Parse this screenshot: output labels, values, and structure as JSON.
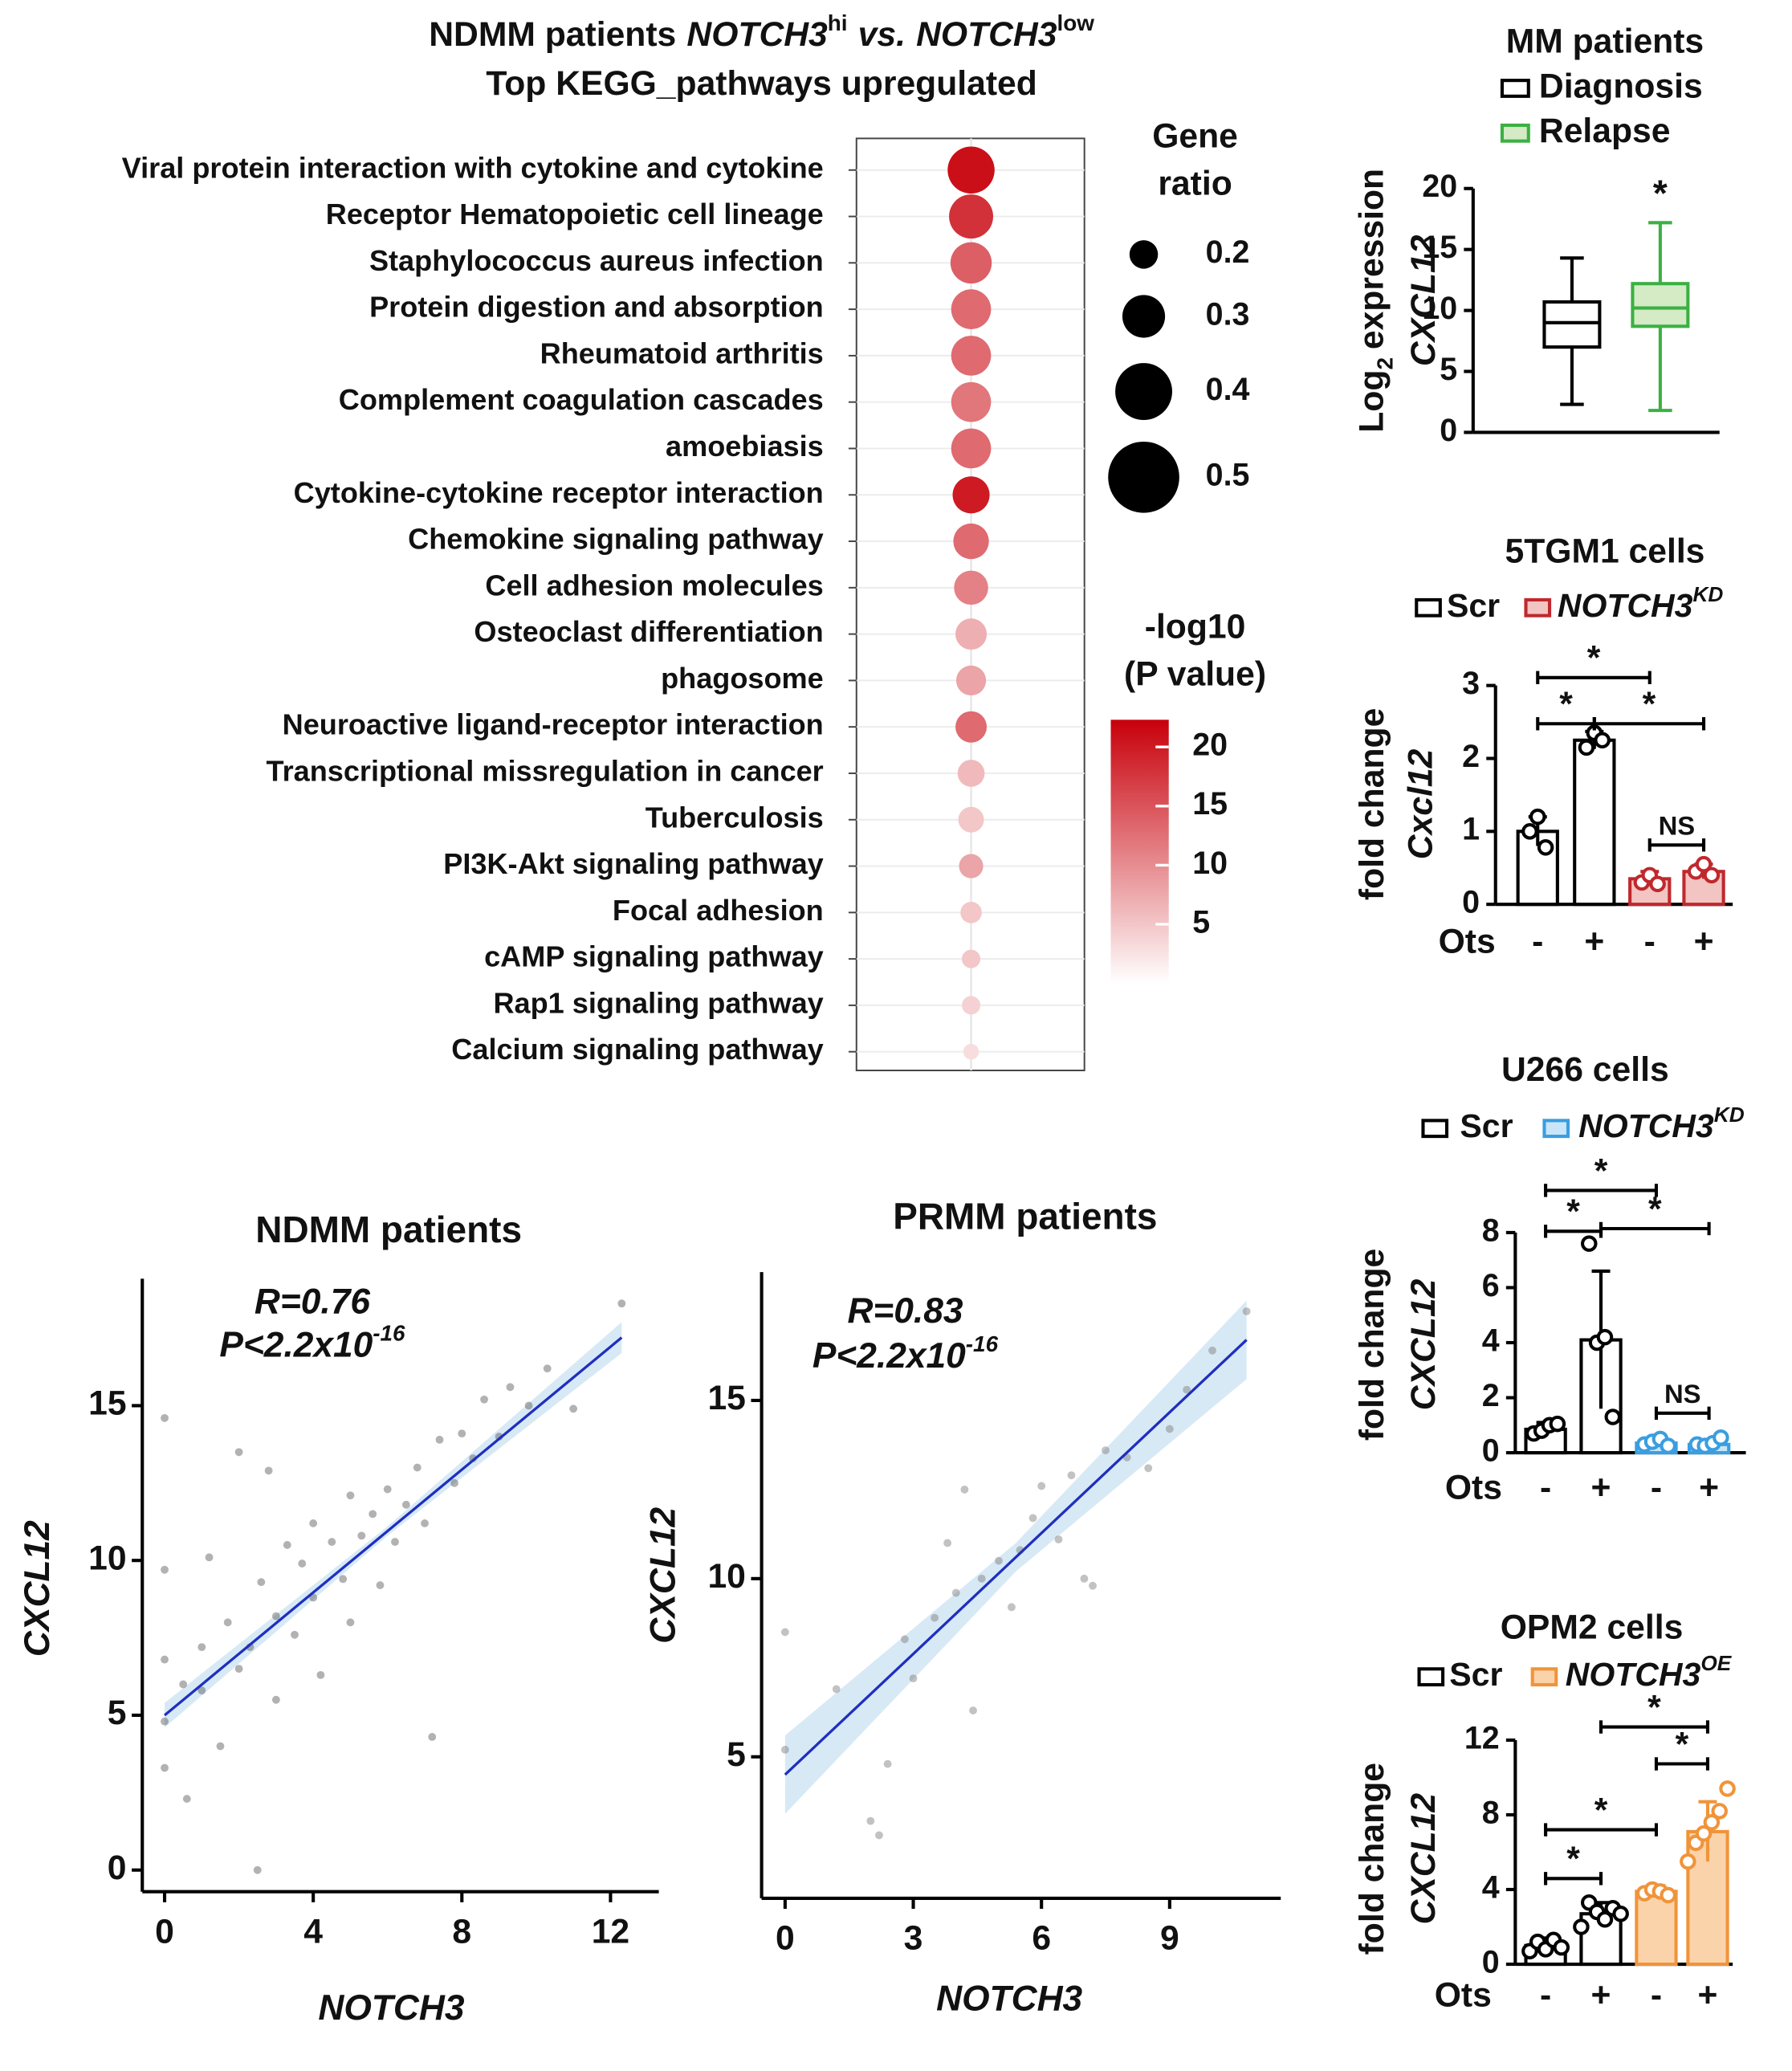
{
  "chart_data": [
    {
      "type": "dot",
      "title_parts": [
        "NDMM patients",
        "NOTCH3",
        "hi",
        "vs.",
        "NOTCH3",
        "low"
      ],
      "subtitle": "Top KEGG_pathways upregulated",
      "categories": [
        "Viral protein interaction with cytokine and cytokine",
        "Receptor Hematopoietic cell lineage",
        "Staphylococcus aureus infection",
        "Protein digestion and absorption",
        "Rheumatoid arthritis",
        "Complement coagulation cascades",
        "amoebiasis",
        "Cytokine-cytokine receptor interaction",
        "Chemokine signaling pathway",
        "Cell adhesion molecules",
        "Osteoclast differentiation",
        "phagosome",
        "Neuroactive ligand-receptor interaction",
        "Transcriptional missregulation in cancer",
        "Tuberculosis",
        "PI3K-Akt signaling pathway",
        "Focal adhesion",
        "cAMP signaling pathway",
        "Rap1 signaling pathway",
        "Calcium signaling pathway"
      ],
      "label_colors": [
        "#111111",
        "#111111",
        "#111111",
        "#111111",
        "#111111",
        "#111111",
        "#111111",
        "#2424d0",
        "#2424d0",
        "#2424d0",
        "#111111",
        "#111111",
        "#111111",
        "#111111",
        "#111111",
        "#111111",
        "#111111",
        "#111111",
        "#111111",
        "#111111"
      ],
      "gene_ratio": [
        0.33,
        0.31,
        0.29,
        0.28,
        0.28,
        0.28,
        0.28,
        0.26,
        0.25,
        0.24,
        0.22,
        0.21,
        0.22,
        0.19,
        0.18,
        0.17,
        0.15,
        0.13,
        0.13,
        0.11
      ],
      "neg_log10_p": [
        21,
        18,
        14,
        13,
        13,
        12,
        13,
        20,
        13,
        11,
        7,
        8,
        13,
        6,
        5,
        8,
        5,
        5,
        4,
        3
      ],
      "size_legend_title": [
        "Gene",
        "ratio"
      ],
      "size_legend": [
        0.2,
        0.3,
        0.4,
        0.5
      ],
      "color_legend_title": [
        "-log10",
        "(P value)"
      ],
      "clim": [
        0,
        22.3
      ],
      "cticks": [
        5,
        10,
        15,
        20
      ],
      "cmap": [
        "#ffffff",
        "#c8000a"
      ]
    },
    {
      "type": "box",
      "title": "MM patients",
      "series": [
        {
          "name": "Diagnosis",
          "color": "#000000",
          "fill": "#ffffff",
          "min": 2.3,
          "q1": 7.0,
          "median": 9.0,
          "q3": 10.7,
          "max": 14.3
        },
        {
          "name": "Relapse",
          "color": "#3cb043",
          "fill": "#d4ebc6",
          "min": 1.8,
          "q1": 8.7,
          "median": 10.2,
          "q3": 12.2,
          "max": 17.2,
          "mark": "*"
        }
      ],
      "ylim": [
        0,
        20
      ],
      "yticks": [
        0,
        5,
        10,
        15,
        20
      ],
      "ylabel_parts": [
        "Log",
        "2",
        "expression"
      ],
      "ylabel2": "CXCL12"
    },
    {
      "type": "bar",
      "title": "5TGM1 cells",
      "xlabel": "Ots",
      "categories": [
        "-",
        "+",
        "-",
        "+"
      ],
      "series": [
        {
          "name": "Scr",
          "color": "#000000",
          "fill": "#ffffff",
          "values": [
            1.0,
            2.25,
            null,
            null
          ],
          "errors": [
            0.2,
            0.12,
            null,
            null
          ],
          "points": [
            [
              1.0,
              1.2,
              0.78
            ],
            [
              2.15,
              2.35,
              2.25
            ],
            null,
            null
          ]
        },
        {
          "name": "NOTCH3",
          "name_sup": "KD",
          "color": "#c0282d",
          "fill": "#f2c4c2",
          "values": [
            null,
            null,
            0.35,
            0.45
          ],
          "errors": [
            null,
            null,
            0.1,
            0.1
          ],
          "points": [
            null,
            null,
            [
              0.3,
              0.4,
              0.28
            ],
            [
              0.45,
              0.55,
              0.4
            ]
          ]
        }
      ],
      "ylim": [
        0,
        3
      ],
      "yticks": [
        0,
        1,
        2,
        3
      ],
      "ylabel": [
        "fold change",
        "Cxcl12"
      ],
      "comparisons": [
        {
          "pair": [
            0,
            1
          ],
          "label": "*"
        },
        {
          "pair": [
            1,
            3
          ],
          "label": "*"
        },
        {
          "pair": [
            0,
            2
          ],
          "label": "*"
        },
        {
          "pair": [
            2,
            3
          ],
          "label": "NS"
        }
      ]
    },
    {
      "type": "bar",
      "title": "U266 cells",
      "xlabel": "Ots",
      "categories": [
        "-",
        "+",
        "-",
        "+"
      ],
      "series": [
        {
          "name": "Scr",
          "color": "#000000",
          "fill": "#ffffff",
          "values": [
            0.85,
            4.1,
            null,
            null
          ],
          "errors": [
            0.25,
            2.5,
            null,
            null
          ],
          "points": [
            [
              0.7,
              0.8,
              1.0,
              1.05
            ],
            [
              7.6,
              4.0,
              4.2,
              1.3
            ],
            null,
            null
          ]
        },
        {
          "name": "NOTCH3",
          "name_sup": "KD",
          "color": "#3a9ee0",
          "fill": "#c8e6f8",
          "values": [
            null,
            null,
            0.35,
            0.3
          ],
          "errors": [
            null,
            null,
            0.1,
            0.1
          ],
          "points": [
            null,
            null,
            [
              0.3,
              0.4,
              0.5,
              0.25
            ],
            [
              0.3,
              0.25,
              0.35,
              0.55
            ]
          ]
        }
      ],
      "ylim": [
        0,
        8
      ],
      "yticks": [
        0,
        2,
        4,
        6,
        8
      ],
      "ylabel": [
        "fold change",
        "CXCL12"
      ],
      "comparisons": [
        {
          "pair": [
            0,
            1
          ],
          "label": "*"
        },
        {
          "pair": [
            1,
            3
          ],
          "label": "*"
        },
        {
          "pair": [
            0,
            2
          ],
          "label": "*"
        },
        {
          "pair": [
            2,
            3
          ],
          "label": "NS"
        }
      ]
    },
    {
      "type": "bar",
      "title": "OPM2 cells",
      "xlabel": "Ots",
      "categories": [
        "-",
        "+",
        "-",
        "+"
      ],
      "series": [
        {
          "name": "Scr",
          "color": "#000000",
          "fill": "#ffffff",
          "values": [
            1.0,
            2.7,
            null,
            null
          ],
          "errors": [
            0.4,
            0.6,
            null,
            null
          ],
          "points": [
            [
              0.7,
              1.2,
              0.8,
              1.3,
              0.9
            ],
            [
              2.0,
              3.3,
              2.8,
              2.4,
              3.0,
              2.7
            ],
            null,
            null
          ]
        },
        {
          "name": "NOTCH3",
          "name_sup": "OE",
          "color": "#f0943a",
          "fill": "#fbd3aa",
          "values": [
            null,
            null,
            3.9,
            7.1
          ],
          "errors": [
            null,
            null,
            0.3,
            1.6
          ],
          "points": [
            null,
            null,
            [
              3.8,
              4.0,
              3.9,
              3.7
            ],
            [
              5.5,
              6.5,
              7.0,
              7.6,
              8.2,
              9.4
            ]
          ]
        }
      ],
      "ylim": [
        0,
        12
      ],
      "yticks": [
        0,
        4,
        8,
        12
      ],
      "ylabel": [
        "fold change",
        "CXCL12"
      ],
      "comparisons": [
        {
          "pair": [
            0,
            1
          ],
          "label": "*"
        },
        {
          "pair": [
            0,
            2
          ],
          "label": "*"
        },
        {
          "pair": [
            2,
            3
          ],
          "label": "*"
        },
        {
          "pair": [
            1,
            3
          ],
          "label": "*"
        }
      ]
    },
    {
      "type": "scatter",
      "title": "NDMM patients",
      "xlabel": "NOTCH3",
      "ylabel": "CXCL12",
      "r_label": "R=0.76",
      "p_label": "P<2.2x10",
      "p_exp": "-16",
      "x": [
        0,
        0,
        0,
        0,
        0,
        0.5,
        0.6,
        1,
        1,
        1.2,
        1.5,
        1.7,
        2,
        2,
        2.3,
        2.5,
        2.6,
        2.8,
        3,
        3,
        3.3,
        3.5,
        3.7,
        4,
        4,
        4.2,
        4.5,
        4.8,
        5,
        5,
        5.3,
        5.6,
        5.8,
        6,
        6.2,
        6.5,
        6.8,
        7,
        7.2,
        7.4,
        7.8,
        8,
        8.3,
        8.6,
        9,
        9.3,
        9.8,
        10.3,
        11,
        12.3
      ],
      "y": [
        4.8,
        14.6,
        9.7,
        6.8,
        3.3,
        6.0,
        2.3,
        5.8,
        7.2,
        10.1,
        4.0,
        8.0,
        6.5,
        13.5,
        7.2,
        0,
        9.3,
        12.9,
        8.2,
        5.5,
        10.5,
        7.6,
        9.9,
        8.8,
        11.2,
        6.3,
        10.6,
        9.4,
        12.1,
        8.0,
        10.8,
        11.5,
        9.2,
        12.3,
        10.6,
        11.8,
        13.0,
        11.2,
        4.3,
        13.9,
        12.5,
        14.1,
        13.3,
        15.2,
        14.0,
        15.6,
        15.0,
        16.2,
        14.9,
        18.3
      ],
      "xlim": [
        -0.6,
        13.3
      ],
      "ylim": [
        -0.7,
        19.1
      ],
      "xticks": [
        0,
        4,
        8,
        12
      ],
      "yticks": [
        0,
        5,
        10,
        15
      ],
      "fit": {
        "x": [
          0,
          6,
          12.3
        ],
        "y": [
          5.0,
          10.95,
          17.2
        ],
        "ci": [
          0.4,
          0.15,
          0.5
        ]
      },
      "point_color": "#555555",
      "fit_color": "#1f2fbf",
      "band_color": "#cde3f2"
    },
    {
      "type": "scatter",
      "title": "PRMM patients",
      "xlabel": "NOTCH3",
      "ylabel": "CXCL12",
      "r_label": "R=0.83",
      "p_label": "P<2.2x10",
      "p_exp": "-16",
      "x": [
        0,
        0,
        1.2,
        2,
        2.2,
        2.4,
        2.8,
        3,
        3.5,
        3.8,
        4,
        4.2,
        4.4,
        4.6,
        5,
        5.3,
        5.5,
        5.8,
        6,
        6.4,
        6.7,
        7,
        7.2,
        7.5,
        8,
        8.5,
        9,
        9.4,
        10,
        10.8
      ],
      "y": [
        8.5,
        5.2,
        6.9,
        3.2,
        2.8,
        4.8,
        8.3,
        7.2,
        8.9,
        11.0,
        9.6,
        12.5,
        6.3,
        10.0,
        10.5,
        9.2,
        10.8,
        11.7,
        12.6,
        11.1,
        12.9,
        10.0,
        9.8,
        13.6,
        13.4,
        13.1,
        14.2,
        15.3,
        16.4,
        17.5
      ],
      "xlim": [
        -0.55,
        11.6
      ],
      "ylim": [
        1.03,
        18.6
      ],
      "xticks": [
        0,
        3,
        6,
        9
      ],
      "yticks": [
        5,
        10,
        15
      ],
      "fit": {
        "x": [
          0,
          5.4,
          10.8
        ],
        "y": [
          4.5,
          10.6,
          16.7
        ],
        "ci": [
          1.1,
          0.4,
          1.1
        ]
      },
      "point_color": "#777777",
      "fit_color": "#1f2fbf",
      "band_color": "#cde3f2"
    }
  ]
}
